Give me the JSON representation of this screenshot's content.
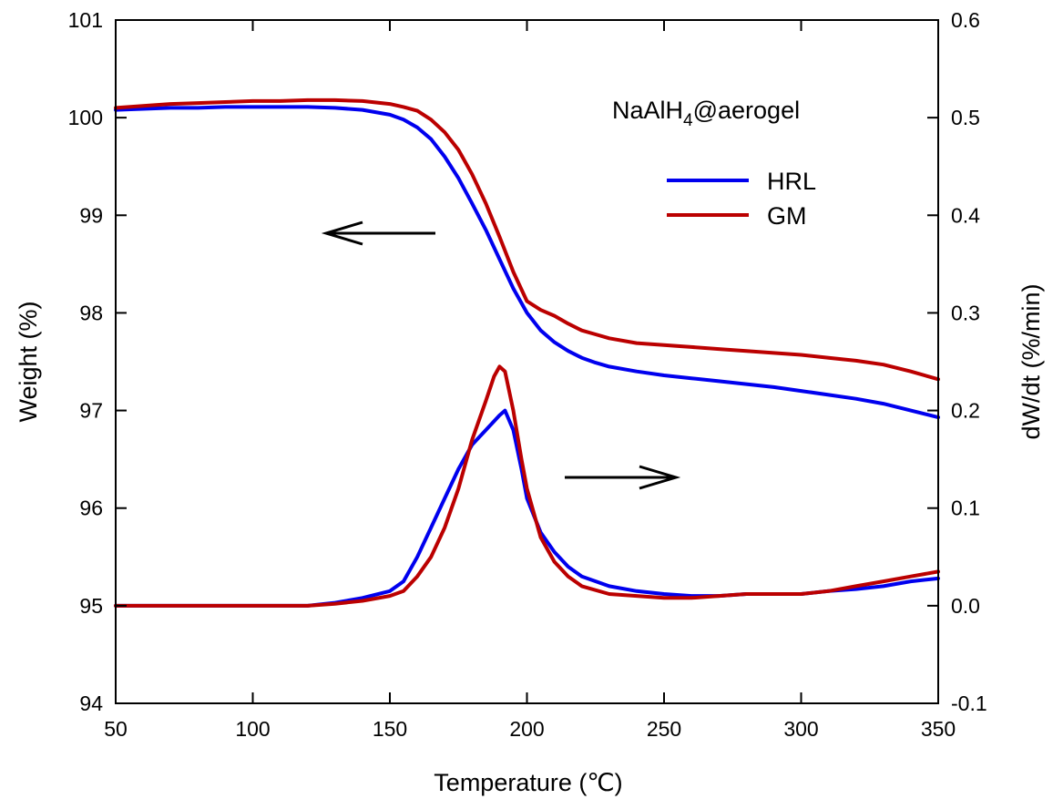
{
  "chart_data": {
    "type": "line",
    "xlabel": "Temperature (℃)",
    "ylabel": "Weight (%)",
    "y2label": "dW/dt (%/min)",
    "xlim": [
      50,
      350
    ],
    "ylim": [
      94,
      101
    ],
    "y2lim": [
      -0.1,
      0.6
    ],
    "x_ticks": [
      "50",
      "100",
      "150",
      "200",
      "250",
      "300",
      "350"
    ],
    "y_ticks": [
      "94",
      "95",
      "96",
      "97",
      "98",
      "99",
      "100",
      "101"
    ],
    "y2_ticks": [
      "-0.1",
      "0.0",
      "0.1",
      "0.2",
      "0.3",
      "0.4",
      "0.5",
      "0.6"
    ],
    "grid": false,
    "legend_position": "top-right",
    "annotation": {
      "prefix": "NaAlH",
      "subscript": "4",
      "suffix": "@aerogel"
    },
    "colors": {
      "HRL": "#0000ee",
      "GM": "#bb0000"
    },
    "series": [
      {
        "name": "HRL",
        "axis": "left",
        "quantity": "weight",
        "x": [
          50,
          60,
          70,
          80,
          90,
          100,
          110,
          120,
          130,
          140,
          150,
          155,
          160,
          165,
          170,
          175,
          180,
          185,
          190,
          195,
          200,
          205,
          210,
          215,
          220,
          225,
          230,
          240,
          250,
          260,
          270,
          280,
          290,
          300,
          310,
          320,
          330,
          340,
          350
        ],
        "values": [
          100.08,
          100.09,
          100.1,
          100.1,
          100.11,
          100.11,
          100.11,
          100.11,
          100.1,
          100.08,
          100.03,
          99.98,
          99.9,
          99.78,
          99.6,
          99.38,
          99.12,
          98.85,
          98.55,
          98.25,
          98.0,
          97.82,
          97.7,
          97.61,
          97.54,
          97.49,
          97.45,
          97.4,
          97.36,
          97.33,
          97.3,
          97.27,
          97.24,
          97.2,
          97.16,
          97.12,
          97.07,
          97.0,
          96.93
        ]
      },
      {
        "name": "GM",
        "axis": "left",
        "quantity": "weight",
        "x": [
          50,
          60,
          70,
          80,
          90,
          100,
          110,
          120,
          130,
          140,
          150,
          155,
          160,
          165,
          170,
          175,
          180,
          185,
          190,
          195,
          200,
          205,
          210,
          215,
          220,
          225,
          230,
          240,
          250,
          260,
          270,
          280,
          290,
          300,
          310,
          320,
          330,
          340,
          350
        ],
        "values": [
          100.1,
          100.12,
          100.14,
          100.15,
          100.16,
          100.17,
          100.17,
          100.18,
          100.18,
          100.17,
          100.14,
          100.11,
          100.07,
          99.98,
          99.85,
          99.67,
          99.42,
          99.12,
          98.78,
          98.42,
          98.12,
          98.03,
          97.97,
          97.89,
          97.82,
          97.78,
          97.74,
          97.69,
          97.67,
          97.65,
          97.63,
          97.61,
          97.59,
          97.57,
          97.54,
          97.51,
          97.47,
          97.4,
          97.32
        ]
      },
      {
        "name": "HRL",
        "axis": "right",
        "quantity": "dW/dt",
        "x": [
          50,
          60,
          70,
          80,
          90,
          100,
          110,
          120,
          130,
          140,
          150,
          155,
          160,
          165,
          170,
          175,
          180,
          185,
          190,
          192,
          195,
          198,
          200,
          205,
          210,
          215,
          220,
          230,
          240,
          250,
          260,
          270,
          280,
          290,
          300,
          310,
          320,
          330,
          340,
          350
        ],
        "values": [
          0.0,
          0.0,
          0.0,
          0.0,
          0.0,
          0.0,
          0.0,
          0.0,
          0.003,
          0.008,
          0.015,
          0.025,
          0.05,
          0.08,
          0.11,
          0.14,
          0.165,
          0.18,
          0.195,
          0.2,
          0.18,
          0.14,
          0.11,
          0.075,
          0.055,
          0.04,
          0.03,
          0.02,
          0.015,
          0.012,
          0.01,
          0.01,
          0.012,
          0.012,
          0.012,
          0.015,
          0.017,
          0.02,
          0.025,
          0.028
        ]
      },
      {
        "name": "GM",
        "axis": "right",
        "quantity": "dW/dt",
        "x": [
          50,
          60,
          70,
          80,
          90,
          100,
          110,
          120,
          130,
          140,
          150,
          155,
          160,
          165,
          170,
          175,
          180,
          185,
          188,
          190,
          192,
          195,
          198,
          200,
          205,
          210,
          215,
          220,
          230,
          240,
          250,
          260,
          270,
          280,
          290,
          300,
          310,
          320,
          330,
          340,
          350
        ],
        "values": [
          0.0,
          0.0,
          0.0,
          0.0,
          0.0,
          0.0,
          0.0,
          0.0,
          0.002,
          0.005,
          0.01,
          0.015,
          0.03,
          0.05,
          0.08,
          0.12,
          0.17,
          0.21,
          0.235,
          0.245,
          0.24,
          0.2,
          0.15,
          0.12,
          0.07,
          0.045,
          0.03,
          0.02,
          0.012,
          0.01,
          0.008,
          0.008,
          0.01,
          0.012,
          0.012,
          0.012,
          0.015,
          0.02,
          0.025,
          0.03,
          0.035
        ]
      }
    ]
  }
}
